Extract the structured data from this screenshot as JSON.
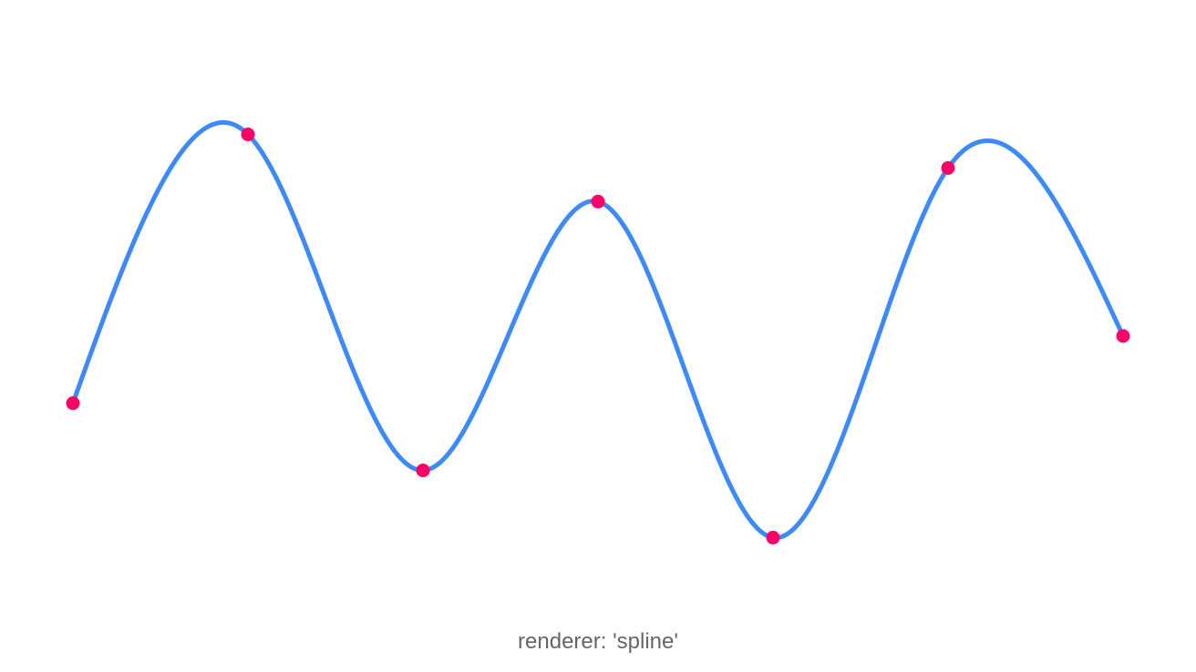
{
  "caption": "renderer: 'spline'",
  "colors": {
    "line": "#3d8af7",
    "point": "#ff0066",
    "background": "#ffffff",
    "caption": "#666666"
  },
  "chart_data": {
    "type": "line",
    "renderer": "spline",
    "title": "",
    "xlabel": "",
    "ylabel": "",
    "axes_visible": false,
    "grid": false,
    "x": [
      0,
      1,
      2,
      3,
      4,
      5,
      6
    ],
    "xlim": [
      0,
      6
    ],
    "ylim": [
      0,
      100
    ],
    "series": [
      {
        "values": [
          40,
          80,
          30,
          70,
          20,
          75,
          50
        ]
      }
    ]
  }
}
